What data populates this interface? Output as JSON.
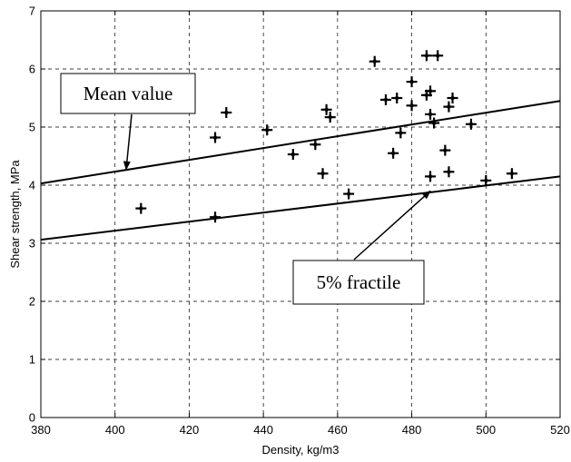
{
  "chart_data": {
    "type": "scatter",
    "xlabel": "Density, kg/m3",
    "ylabel": "Shear strength, MPa",
    "xlim": [
      380,
      520
    ],
    "ylim": [
      0,
      7
    ],
    "grid": true,
    "xticks": [
      380,
      400,
      420,
      440,
      460,
      480,
      500,
      520
    ],
    "yticks": [
      0,
      1,
      2,
      3,
      4,
      5,
      6,
      7
    ],
    "points": [
      {
        "x": 407,
        "y": 3.6
      },
      {
        "x": 427,
        "y": 3.45
      },
      {
        "x": 427,
        "y": 4.82
      },
      {
        "x": 430,
        "y": 5.25
      },
      {
        "x": 441,
        "y": 4.95
      },
      {
        "x": 448,
        "y": 4.53
      },
      {
        "x": 454,
        "y": 4.7
      },
      {
        "x": 456,
        "y": 4.2
      },
      {
        "x": 457,
        "y": 5.3
      },
      {
        "x": 458,
        "y": 5.17
      },
      {
        "x": 463,
        "y": 3.85
      },
      {
        "x": 470,
        "y": 6.13
      },
      {
        "x": 473,
        "y": 5.47
      },
      {
        "x": 475,
        "y": 4.55
      },
      {
        "x": 476,
        "y": 5.5
      },
      {
        "x": 477,
        "y": 4.9
      },
      {
        "x": 480,
        "y": 5.78
      },
      {
        "x": 480,
        "y": 5.37
      },
      {
        "x": 484,
        "y": 6.23
      },
      {
        "x": 484,
        "y": 5.55
      },
      {
        "x": 485,
        "y": 5.62
      },
      {
        "x": 485,
        "y": 5.22
      },
      {
        "x": 485,
        "y": 4.15
      },
      {
        "x": 486,
        "y": 5.07
      },
      {
        "x": 487,
        "y": 6.23
      },
      {
        "x": 489,
        "y": 4.6
      },
      {
        "x": 490,
        "y": 5.35
      },
      {
        "x": 490,
        "y": 4.23
      },
      {
        "x": 491,
        "y": 5.5
      },
      {
        "x": 496,
        "y": 5.05
      },
      {
        "x": 500,
        "y": 4.08
      },
      {
        "x": 507,
        "y": 4.2
      }
    ],
    "lines": [
      {
        "name": "Mean value",
        "x": [
          380,
          520
        ],
        "y": [
          4.03,
          5.45
        ]
      },
      {
        "name": "5% fractile",
        "x": [
          380,
          520
        ],
        "y": [
          3.06,
          4.15
        ]
      }
    ],
    "annotations": [
      {
        "text": "Mean value",
        "points_to": {
          "x": 403,
          "y": 4.27
        }
      },
      {
        "text": "5% fractile",
        "points_to": {
          "x": 485,
          "y": 3.9
        }
      }
    ]
  }
}
